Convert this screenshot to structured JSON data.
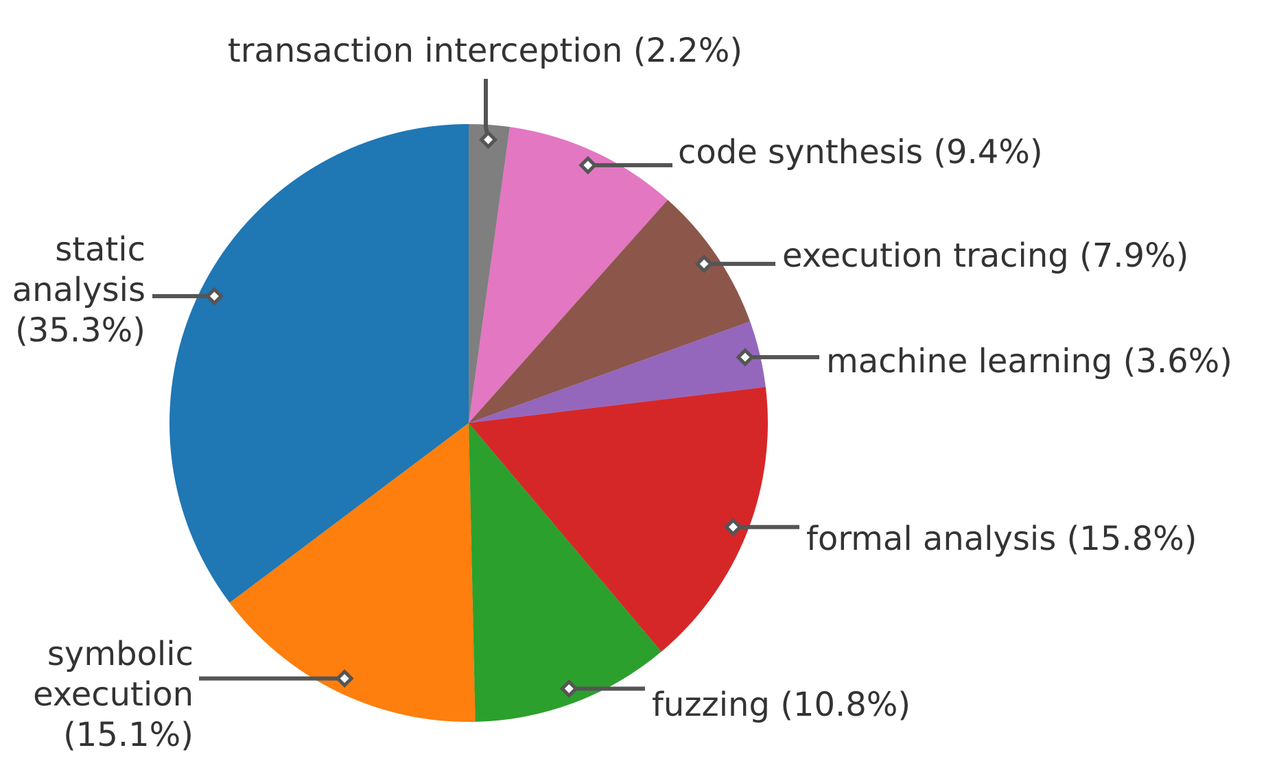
{
  "chart_data": {
    "type": "pie",
    "title": "",
    "slices": [
      {
        "label": "transaction interception (2.2%)",
        "lines": [
          "transaction interception (2.2%)"
        ],
        "value": 2.2,
        "color": "#7f7f7f"
      },
      {
        "label": "code synthesis (9.4%)",
        "lines": [
          "code synthesis (9.4%)"
        ],
        "value": 9.4,
        "color": "#e377c2"
      },
      {
        "label": "execution tracing (7.9%)",
        "lines": [
          "execution tracing (7.9%)"
        ],
        "value": 7.9,
        "color": "#8c564b"
      },
      {
        "label": "machine learning (3.6%)",
        "lines": [
          "machine learning (3.6%)"
        ],
        "value": 3.6,
        "color": "#9467bd"
      },
      {
        "label": "formal analysis (15.8%)",
        "lines": [
          "formal analysis (15.8%)"
        ],
        "value": 15.8,
        "color": "#d62728"
      },
      {
        "label": "fuzzing (10.8%)",
        "lines": [
          "fuzzing (10.8%)"
        ],
        "value": 10.8,
        "color": "#2ca02c"
      },
      {
        "label": "symbolic execution (15.1%)",
        "lines": [
          "symbolic",
          "execution",
          "(15.1%)"
        ],
        "value": 15.1,
        "color": "#ff7f0e"
      },
      {
        "label": "static analysis (35.3%)",
        "lines": [
          "static",
          "analysis",
          "(35.3%)"
        ],
        "value": 35.3,
        "color": "#1f77b4"
      }
    ],
    "start_angle": "top",
    "direction": "clockwise"
  },
  "colors": {
    "leader": "#555555",
    "text": "#333333",
    "background": "#ffffff"
  }
}
